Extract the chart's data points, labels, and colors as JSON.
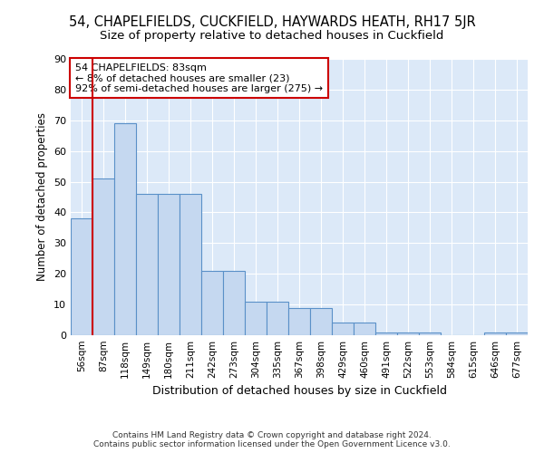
{
  "title": "54, CHAPELFIELDS, CUCKFIELD, HAYWARDS HEATH, RH17 5JR",
  "subtitle": "Size of property relative to detached houses in Cuckfield",
  "xlabel": "Distribution of detached houses by size in Cuckfield",
  "ylabel": "Number of detached properties",
  "categories": [
    "56sqm",
    "87sqm",
    "118sqm",
    "149sqm",
    "180sqm",
    "211sqm",
    "242sqm",
    "273sqm",
    "304sqm",
    "335sqm",
    "367sqm",
    "398sqm",
    "429sqm",
    "460sqm",
    "491sqm",
    "522sqm",
    "553sqm",
    "584sqm",
    "615sqm",
    "646sqm",
    "677sqm"
  ],
  "values": [
    38,
    51,
    69,
    46,
    46,
    46,
    21,
    21,
    11,
    11,
    9,
    9,
    4,
    4,
    1,
    1,
    1,
    0,
    0,
    1,
    1
  ],
  "bar_color": "#c5d8f0",
  "bar_edge_color": "#5a90c8",
  "background_color": "#dce9f8",
  "grid_color": "#ffffff",
  "marker_color": "#cc0000",
  "annotation_text": "54 CHAPELFIELDS: 83sqm\n← 8% of detached houses are smaller (23)\n92% of semi-detached houses are larger (275) →",
  "annotation_box_color": "#ffffff",
  "annotation_box_edge": "#cc0000",
  "ylim": [
    0,
    90
  ],
  "yticks": [
    0,
    10,
    20,
    30,
    40,
    50,
    60,
    70,
    80,
    90
  ],
  "footer": "Contains HM Land Registry data © Crown copyright and database right 2024.\nContains public sector information licensed under the Open Government Licence v3.0.",
  "title_fontsize": 10.5,
  "subtitle_fontsize": 9.5,
  "xlabel_fontsize": 9,
  "ylabel_fontsize": 8.5,
  "tick_fontsize": 8,
  "xtick_fontsize": 7.5,
  "footer_fontsize": 6.5
}
